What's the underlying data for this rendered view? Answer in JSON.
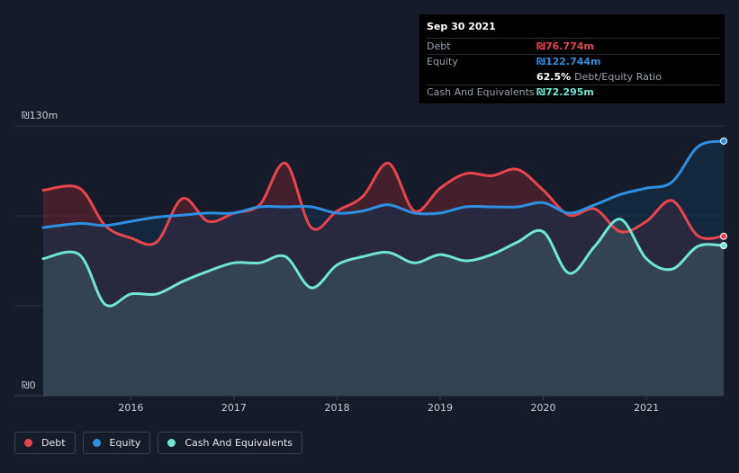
{
  "chart_data": {
    "type": "area",
    "currency_prefix": "₪",
    "y_axis": {
      "min": 0,
      "max": 130,
      "top_label": "₪130m",
      "bottom_label": "₪0"
    },
    "x_ticks": [
      2016,
      2017,
      2018,
      2019,
      2020,
      2021
    ],
    "x_range": [
      2015.15,
      2021.75
    ],
    "series": [
      {
        "name": "Debt",
        "color": "#e8444e",
        "fill": "#6b2430",
        "points": [
          [
            2015.15,
            99
          ],
          [
            2015.5,
            100
          ],
          [
            2015.75,
            82
          ],
          [
            2016.0,
            76
          ],
          [
            2016.25,
            74
          ],
          [
            2016.5,
            95
          ],
          [
            2016.75,
            84
          ],
          [
            2017.0,
            88
          ],
          [
            2017.25,
            92
          ],
          [
            2017.5,
            112
          ],
          [
            2017.75,
            81
          ],
          [
            2018.0,
            89
          ],
          [
            2018.25,
            96
          ],
          [
            2018.5,
            112
          ],
          [
            2018.75,
            89
          ],
          [
            2019.0,
            100
          ],
          [
            2019.25,
            107
          ],
          [
            2019.5,
            106
          ],
          [
            2019.75,
            109
          ],
          [
            2020.0,
            99
          ],
          [
            2020.25,
            87
          ],
          [
            2020.5,
            90
          ],
          [
            2020.75,
            79
          ],
          [
            2021.0,
            84
          ],
          [
            2021.25,
            94
          ],
          [
            2021.5,
            77
          ],
          [
            2021.75,
            76.8
          ]
        ]
      },
      {
        "name": "Equity",
        "color": "#2e8fe0",
        "fill": "#12324e",
        "points": [
          [
            2015.15,
            81
          ],
          [
            2015.5,
            83
          ],
          [
            2015.75,
            82
          ],
          [
            2016.0,
            84
          ],
          [
            2016.25,
            86
          ],
          [
            2016.5,
            87
          ],
          [
            2016.75,
            88
          ],
          [
            2017.0,
            88
          ],
          [
            2017.25,
            91
          ],
          [
            2017.5,
            91
          ],
          [
            2017.75,
            91
          ],
          [
            2018.0,
            88
          ],
          [
            2018.25,
            89
          ],
          [
            2018.5,
            92
          ],
          [
            2018.75,
            88
          ],
          [
            2019.0,
            88
          ],
          [
            2019.25,
            91
          ],
          [
            2019.5,
            91
          ],
          [
            2019.75,
            91
          ],
          [
            2020.0,
            93
          ],
          [
            2020.25,
            88
          ],
          [
            2020.5,
            92
          ],
          [
            2020.75,
            97
          ],
          [
            2021.0,
            100
          ],
          [
            2021.25,
            103
          ],
          [
            2021.5,
            120
          ],
          [
            2021.75,
            122.7
          ]
        ]
      },
      {
        "name": "Cash And Equivalents",
        "color": "#6fe5d4",
        "fill": "#3d5a60",
        "points": [
          [
            2015.15,
            66
          ],
          [
            2015.5,
            68
          ],
          [
            2015.75,
            44
          ],
          [
            2016.0,
            49
          ],
          [
            2016.25,
            49
          ],
          [
            2016.5,
            55
          ],
          [
            2016.75,
            60
          ],
          [
            2017.0,
            64
          ],
          [
            2017.25,
            64
          ],
          [
            2017.5,
            67
          ],
          [
            2017.75,
            52
          ],
          [
            2018.0,
            63
          ],
          [
            2018.25,
            67
          ],
          [
            2018.5,
            69
          ],
          [
            2018.75,
            64
          ],
          [
            2019.0,
            68
          ],
          [
            2019.25,
            65
          ],
          [
            2019.5,
            68
          ],
          [
            2019.75,
            74
          ],
          [
            2020.0,
            79
          ],
          [
            2020.25,
            59
          ],
          [
            2020.5,
            72
          ],
          [
            2020.75,
            85
          ],
          [
            2021.0,
            66
          ],
          [
            2021.25,
            61
          ],
          [
            2021.5,
            72
          ],
          [
            2021.75,
            72.3
          ]
        ]
      }
    ]
  },
  "tooltip": {
    "date": "Sep 30 2021",
    "rows": [
      {
        "label": "Debt",
        "value": "₪76.774m",
        "color": "#e8444e"
      },
      {
        "label": "Equity",
        "value": "₪122.744m",
        "color": "#2e8fe0"
      }
    ],
    "ratio_value": "62.5%",
    "ratio_label": "Debt/Equity Ratio",
    "cash_label": "Cash And Equivalents",
    "cash_value": "₪72.295m",
    "cash_color": "#6fe5d4"
  },
  "legend": [
    {
      "label": "Debt",
      "color": "#e8444e"
    },
    {
      "label": "Equity",
      "color": "#2e8fe0"
    },
    {
      "label": "Cash And Equivalents",
      "color": "#6fe5d4"
    }
  ]
}
